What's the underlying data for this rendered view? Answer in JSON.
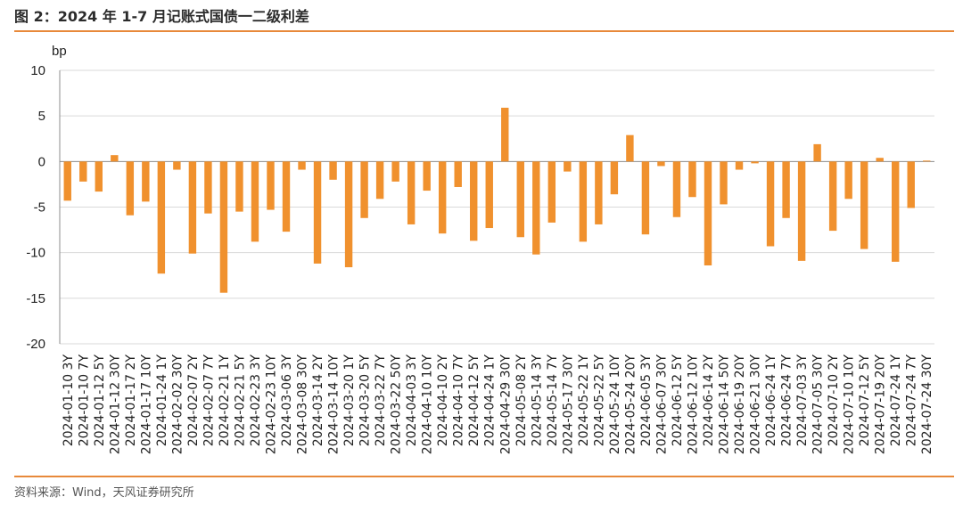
{
  "header": {
    "title": "图 2：2024 年 1-7 月记账式国债一二级利差"
  },
  "footer": {
    "source": "资料来源：Wind，天风证券研究所"
  },
  "colors": {
    "bar": "#f0912e",
    "rule": "#e8893a",
    "grid": "#d9d9d9"
  },
  "chart_data": {
    "type": "bar",
    "title": "图 2：2024 年 1-7 月记账式国债一二级利差",
    "ylabel": "bp",
    "xlabel": "",
    "ylim": [
      -20,
      10
    ],
    "yticks": [
      10,
      5,
      0,
      -5,
      -10,
      -15,
      -20
    ],
    "grid": "horizontal",
    "legend": "none",
    "categories": [
      "2024-01-10 3Y",
      "2024-01-10 7Y",
      "2024-01-12 5Y",
      "2024-01-12 30Y",
      "2024-01-17 2Y",
      "2024-01-17 10Y",
      "2024-01-24 1Y",
      "2024-02-02 30Y",
      "2024-02-07 2Y",
      "2024-02-07 7Y",
      "2024-02-21 1Y",
      "2024-02-21 5Y",
      "2024-02-23 3Y",
      "2024-02-23 10Y",
      "2024-03-06 3Y",
      "2024-03-08 30Y",
      "2024-03-14 2Y",
      "2024-03-14 10Y",
      "2024-03-20 1Y",
      "2024-03-20 5Y",
      "2024-03-22 7Y",
      "2024-03-22 50Y",
      "2024-04-03 3Y",
      "2024-04-10 10Y",
      "2024-04-10 2Y",
      "2024-04-10 7Y",
      "2024-04-12 5Y",
      "2024-04-24 1Y",
      "2024-04-29 30Y",
      "2024-05-08 2Y",
      "2024-05-14 3Y",
      "2024-05-14 7Y",
      "2024-05-17 30Y",
      "2024-05-22 1Y",
      "2024-05-22 5Y",
      "2024-05-24 10Y",
      "2024-05-24 20Y",
      "2024-06-05 3Y",
      "2024-06-07 30Y",
      "2024-06-12 5Y",
      "2024-06-12 10Y",
      "2024-06-14 2Y",
      "2024-06-14 50Y",
      "2024-06-19 20Y",
      "2024-06-21 30Y",
      "2024-06-24 1Y",
      "2024-06-24 7Y",
      "2024-07-03 3Y",
      "2024-07-05 30Y",
      "2024-07-10 2Y",
      "2024-07-10 10Y",
      "2024-07-12 5Y",
      "2024-07-19 20Y",
      "2024-07-24 1Y",
      "2024-07-24 7Y",
      "2024-07-24 30Y"
    ],
    "values": [
      -4.3,
      -2.2,
      -3.3,
      0.7,
      -5.9,
      -4.4,
      -12.3,
      -0.9,
      -10.1,
      -5.7,
      -14.4,
      -5.5,
      -8.8,
      -5.3,
      -7.7,
      -0.9,
      -11.2,
      -2.0,
      -11.6,
      -6.2,
      -4.1,
      -2.2,
      -6.9,
      -3.2,
      -7.9,
      -2.8,
      -8.7,
      -7.3,
      5.9,
      -8.3,
      -10.2,
      -6.7,
      -1.1,
      -8.8,
      -6.9,
      -3.6,
      2.9,
      -8.0,
      -0.5,
      -6.1,
      -3.9,
      -11.4,
      -4.7,
      -0.9,
      -0.2,
      -9.3,
      -6.2,
      -10.9,
      1.9,
      -7.6,
      -4.1,
      -9.6,
      0.4,
      -11.0,
      -5.1,
      0.1
    ]
  }
}
